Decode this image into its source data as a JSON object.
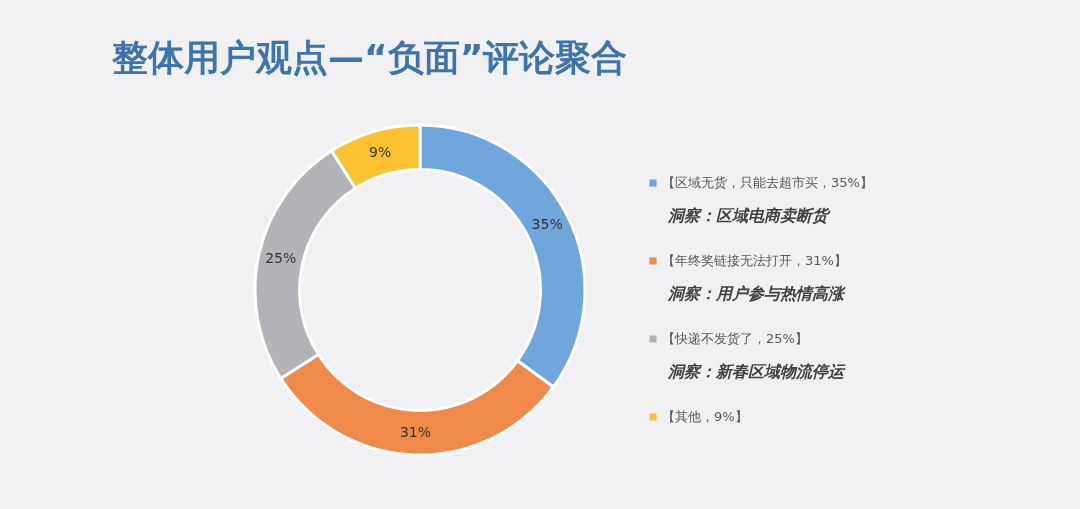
{
  "chart_data": {
    "type": "donut",
    "title": "整体用户观点—“负面”评论聚合",
    "categories": [
      "【区域无货，只能去超市买，35%】",
      "【年终奖链接无法打开，31%】",
      "【快递不发货了，25%】",
      "【其他，9%】"
    ],
    "values": [
      35,
      31,
      25,
      9
    ],
    "colors": [
      "#6fa6dc",
      "#f08a4b",
      "#b4b4b8",
      "#fcc232"
    ],
    "value_labels": [
      "35%",
      "31%",
      "25%",
      "9%"
    ],
    "legend": "right",
    "annotations": [
      "洞察：区域电商卖断货",
      "洞察：用户参与热情高涨",
      "洞察：新春区域物流停运"
    ]
  }
}
